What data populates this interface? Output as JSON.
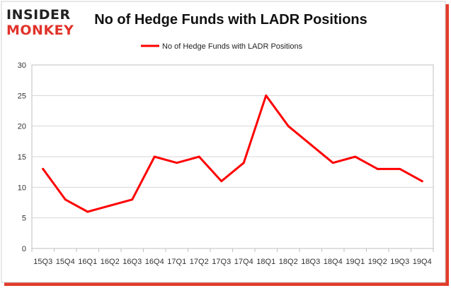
{
  "brand": {
    "line1": "INSIDER",
    "line2": "MONKEY",
    "color1": "#222222",
    "color2": "#e0332b"
  },
  "chart_data": {
    "type": "line",
    "title": "No of Hedge Funds with LADR Positions",
    "xlabel": "",
    "ylabel": "",
    "categories": [
      "15Q3",
      "15Q4",
      "16Q1",
      "16Q2",
      "16Q3",
      "16Q4",
      "17Q1",
      "17Q2",
      "17Q3",
      "17Q4",
      "18Q1",
      "18Q2",
      "18Q3",
      "18Q4",
      "19Q1",
      "19Q2",
      "19Q3",
      "19Q4"
    ],
    "series": [
      {
        "name": "No of Hedge Funds with LADR Positions",
        "values": [
          13,
          8,
          6,
          7,
          8,
          15,
          14,
          15,
          11,
          14,
          25,
          20,
          17,
          14,
          15,
          13,
          13,
          11
        ],
        "color": "#ff0000"
      }
    ],
    "ylim": [
      0,
      30
    ],
    "yticks": [
      0,
      5,
      10,
      15,
      20,
      25,
      30
    ],
    "grid": true,
    "legend_position": "top-center",
    "frame_shadow_color": "#e23b2a"
  }
}
